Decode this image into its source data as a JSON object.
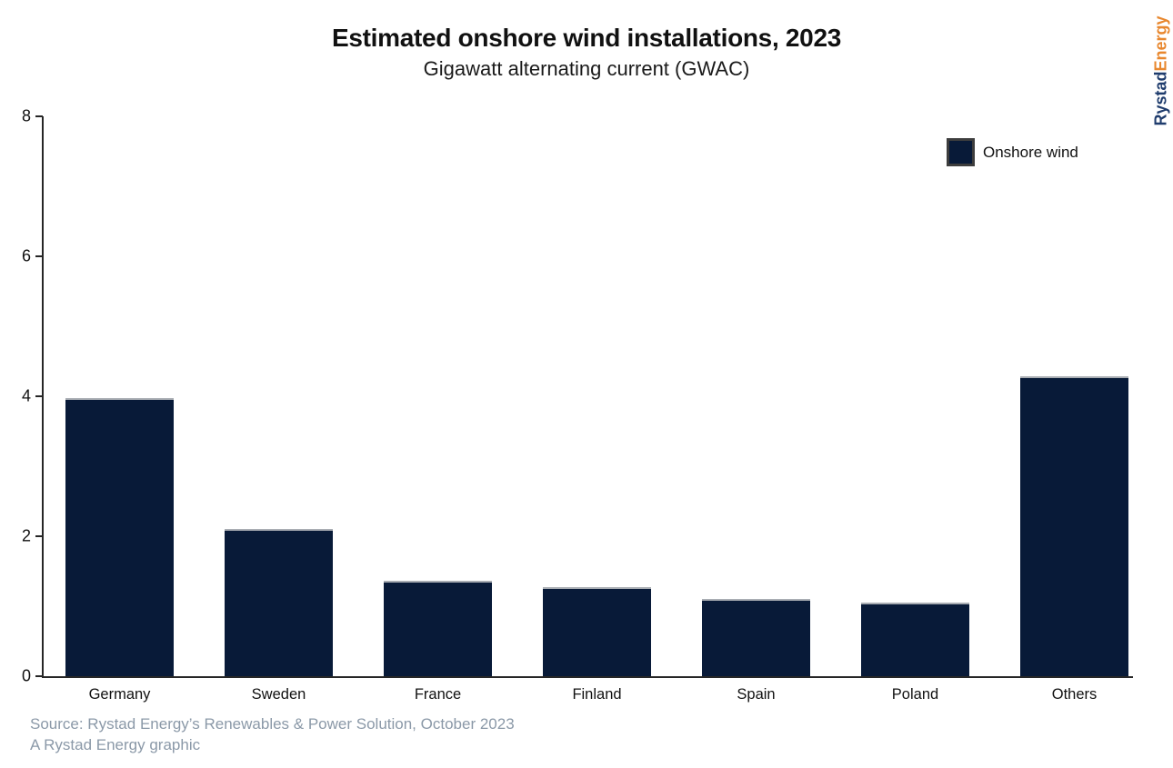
{
  "header": {
    "title": "Estimated onshore wind installations, 2023",
    "subtitle": "Gigawatt alternating current (GWAC)"
  },
  "legend": {
    "label": "Onshore wind"
  },
  "branding": {
    "logo_part1": "Rystad",
    "logo_part2": "Energy",
    "part1_color": "#1f3c6d",
    "part2_color": "#e8872e"
  },
  "footer": {
    "source_line": "Source: Rystad Energy’s Renewables & Power Solution, October 2023",
    "credit_line": "A Rystad Energy graphic"
  },
  "colors": {
    "bar_fill": "#081a38",
    "bar_top_edge": "#a9adb3",
    "legend_border": "#3d3d3d",
    "axis": "#262626",
    "source_text": "#8b99a8",
    "text": "#111111"
  },
  "chart_data": {
    "type": "bar",
    "title": "Estimated onshore wind installations, 2023",
    "subtitle": "Gigawatt alternating current (GWAC)",
    "unit": "GWAC",
    "categories": [
      "Germany",
      "Sweden",
      "France",
      "Finland",
      "Spain",
      "Poland",
      "Others"
    ],
    "series": [
      {
        "name": "Onshore wind",
        "values": [
          3.98,
          2.11,
          1.36,
          1.27,
          1.1,
          1.05,
          4.29
        ]
      }
    ],
    "xlabel": "",
    "ylabel": "",
    "ylim": [
      0,
      8
    ],
    "yticks": [
      0,
      2,
      4,
      6,
      8
    ],
    "grid": false,
    "legend_position": "top-right"
  }
}
